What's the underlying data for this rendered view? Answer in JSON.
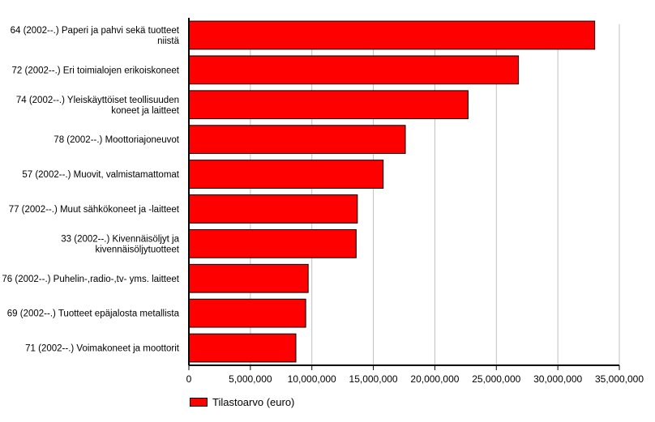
{
  "chart_data": {
    "type": "bar",
    "orientation": "horizontal",
    "categories": [
      [
        "64 (2002--.) Paperi ja pahvi sekä tuotteet",
        "niistä"
      ],
      [
        "72 (2002--.) Eri toimialojen erikoiskoneet"
      ],
      [
        "74 (2002--.) Yleiskäyttöiset teollisuuden",
        "koneet ja laitteet"
      ],
      [
        "78 (2002--.) Moottoriajoneuvot"
      ],
      [
        "57 (2002--.) Muovit, valmistamattomat"
      ],
      [
        "77 (2002--.) Muut sähkökoneet ja -laitteet"
      ],
      [
        "33 (2002--.) Kivennäisöljyt ja",
        "kivennäisöljytuotteet"
      ],
      [
        "76 (2002--.) Puhelin-,radio-,tv- yms. laitteet"
      ],
      [
        "69 (2002--.) Tuotteet epäjalosta metallista"
      ],
      [
        "71 (2002--.) Voimakoneet ja moottorit"
      ]
    ],
    "series": [
      {
        "name": "Tilastoarvo (euro)",
        "color": "#ff0000",
        "values": [
          33000000,
          26800000,
          22700000,
          17600000,
          15800000,
          13700000,
          13600000,
          9700000,
          9500000,
          8700000
        ]
      }
    ],
    "xlim": [
      0,
      35000000
    ],
    "xticks": [
      0,
      5000000,
      10000000,
      15000000,
      20000000,
      25000000,
      30000000,
      35000000
    ],
    "xtick_labels": [
      "0",
      "5,000,000",
      "10,000,000",
      "15,000,000",
      "20,000,000",
      "25,000,000",
      "30,000,000",
      "35,000,000"
    ],
    "grid": true,
    "legend": "bottom-left"
  }
}
